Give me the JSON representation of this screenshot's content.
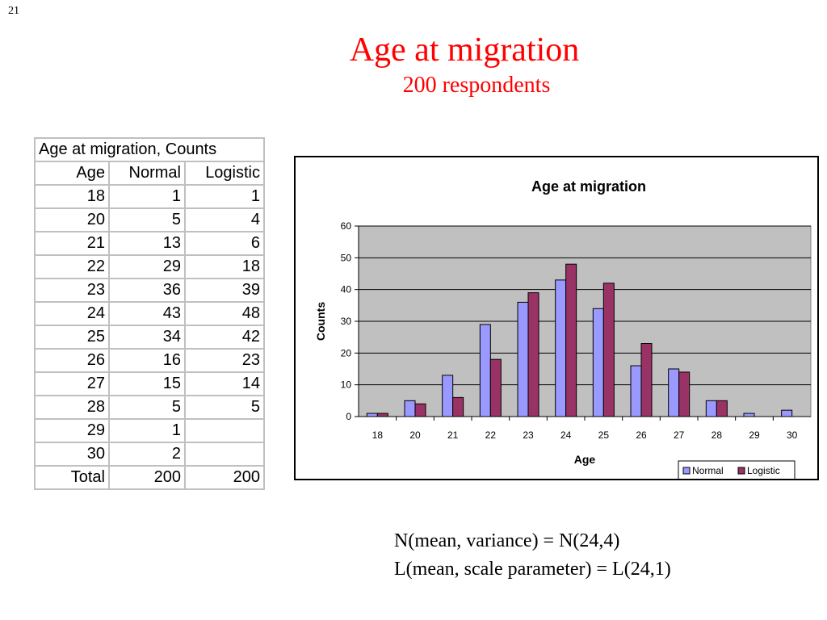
{
  "slide_number": "21",
  "title": "Age at migration",
  "subtitle": "200 respondents",
  "table": {
    "caption": "Age at migration, Counts",
    "headers": [
      "Age",
      "Normal",
      "Logistic"
    ],
    "rows": [
      [
        "18",
        "1",
        "1"
      ],
      [
        "20",
        "5",
        "4"
      ],
      [
        "21",
        "13",
        "6"
      ],
      [
        "22",
        "29",
        "18"
      ],
      [
        "23",
        "36",
        "39"
      ],
      [
        "24",
        "43",
        "48"
      ],
      [
        "25",
        "34",
        "42"
      ],
      [
        "26",
        "16",
        "23"
      ],
      [
        "27",
        "15",
        "14"
      ],
      [
        "28",
        "5",
        "5"
      ],
      [
        "29",
        "1",
        ""
      ],
      [
        "30",
        "2",
        ""
      ]
    ],
    "total": [
      "Total",
      "200",
      "200"
    ]
  },
  "chart_data": {
    "type": "bar",
    "title": "Age at migration",
    "xlabel": "Age",
    "ylabel": "Counts",
    "categories": [
      "18",
      "20",
      "21",
      "22",
      "23",
      "24",
      "25",
      "26",
      "27",
      "28",
      "29",
      "30"
    ],
    "series": [
      {
        "name": "Normal",
        "values": [
          1,
          5,
          13,
          29,
          36,
          43,
          34,
          16,
          15,
          5,
          1,
          2
        ],
        "color": "#9999ff"
      },
      {
        "name": "Logistic",
        "values": [
          1,
          4,
          6,
          18,
          39,
          48,
          42,
          23,
          14,
          5,
          0,
          0
        ],
        "color": "#993366"
      }
    ],
    "ylim": [
      0,
      60
    ],
    "yticks": [
      0,
      10,
      20,
      30,
      40,
      50,
      60
    ],
    "plot_background": "#c0c0c0",
    "grid": true,
    "legend_position": "bottom-right"
  },
  "formulas": [
    "N(mean, variance) = N(24,4)",
    "L(mean, scale parameter) = L(24,1)"
  ]
}
